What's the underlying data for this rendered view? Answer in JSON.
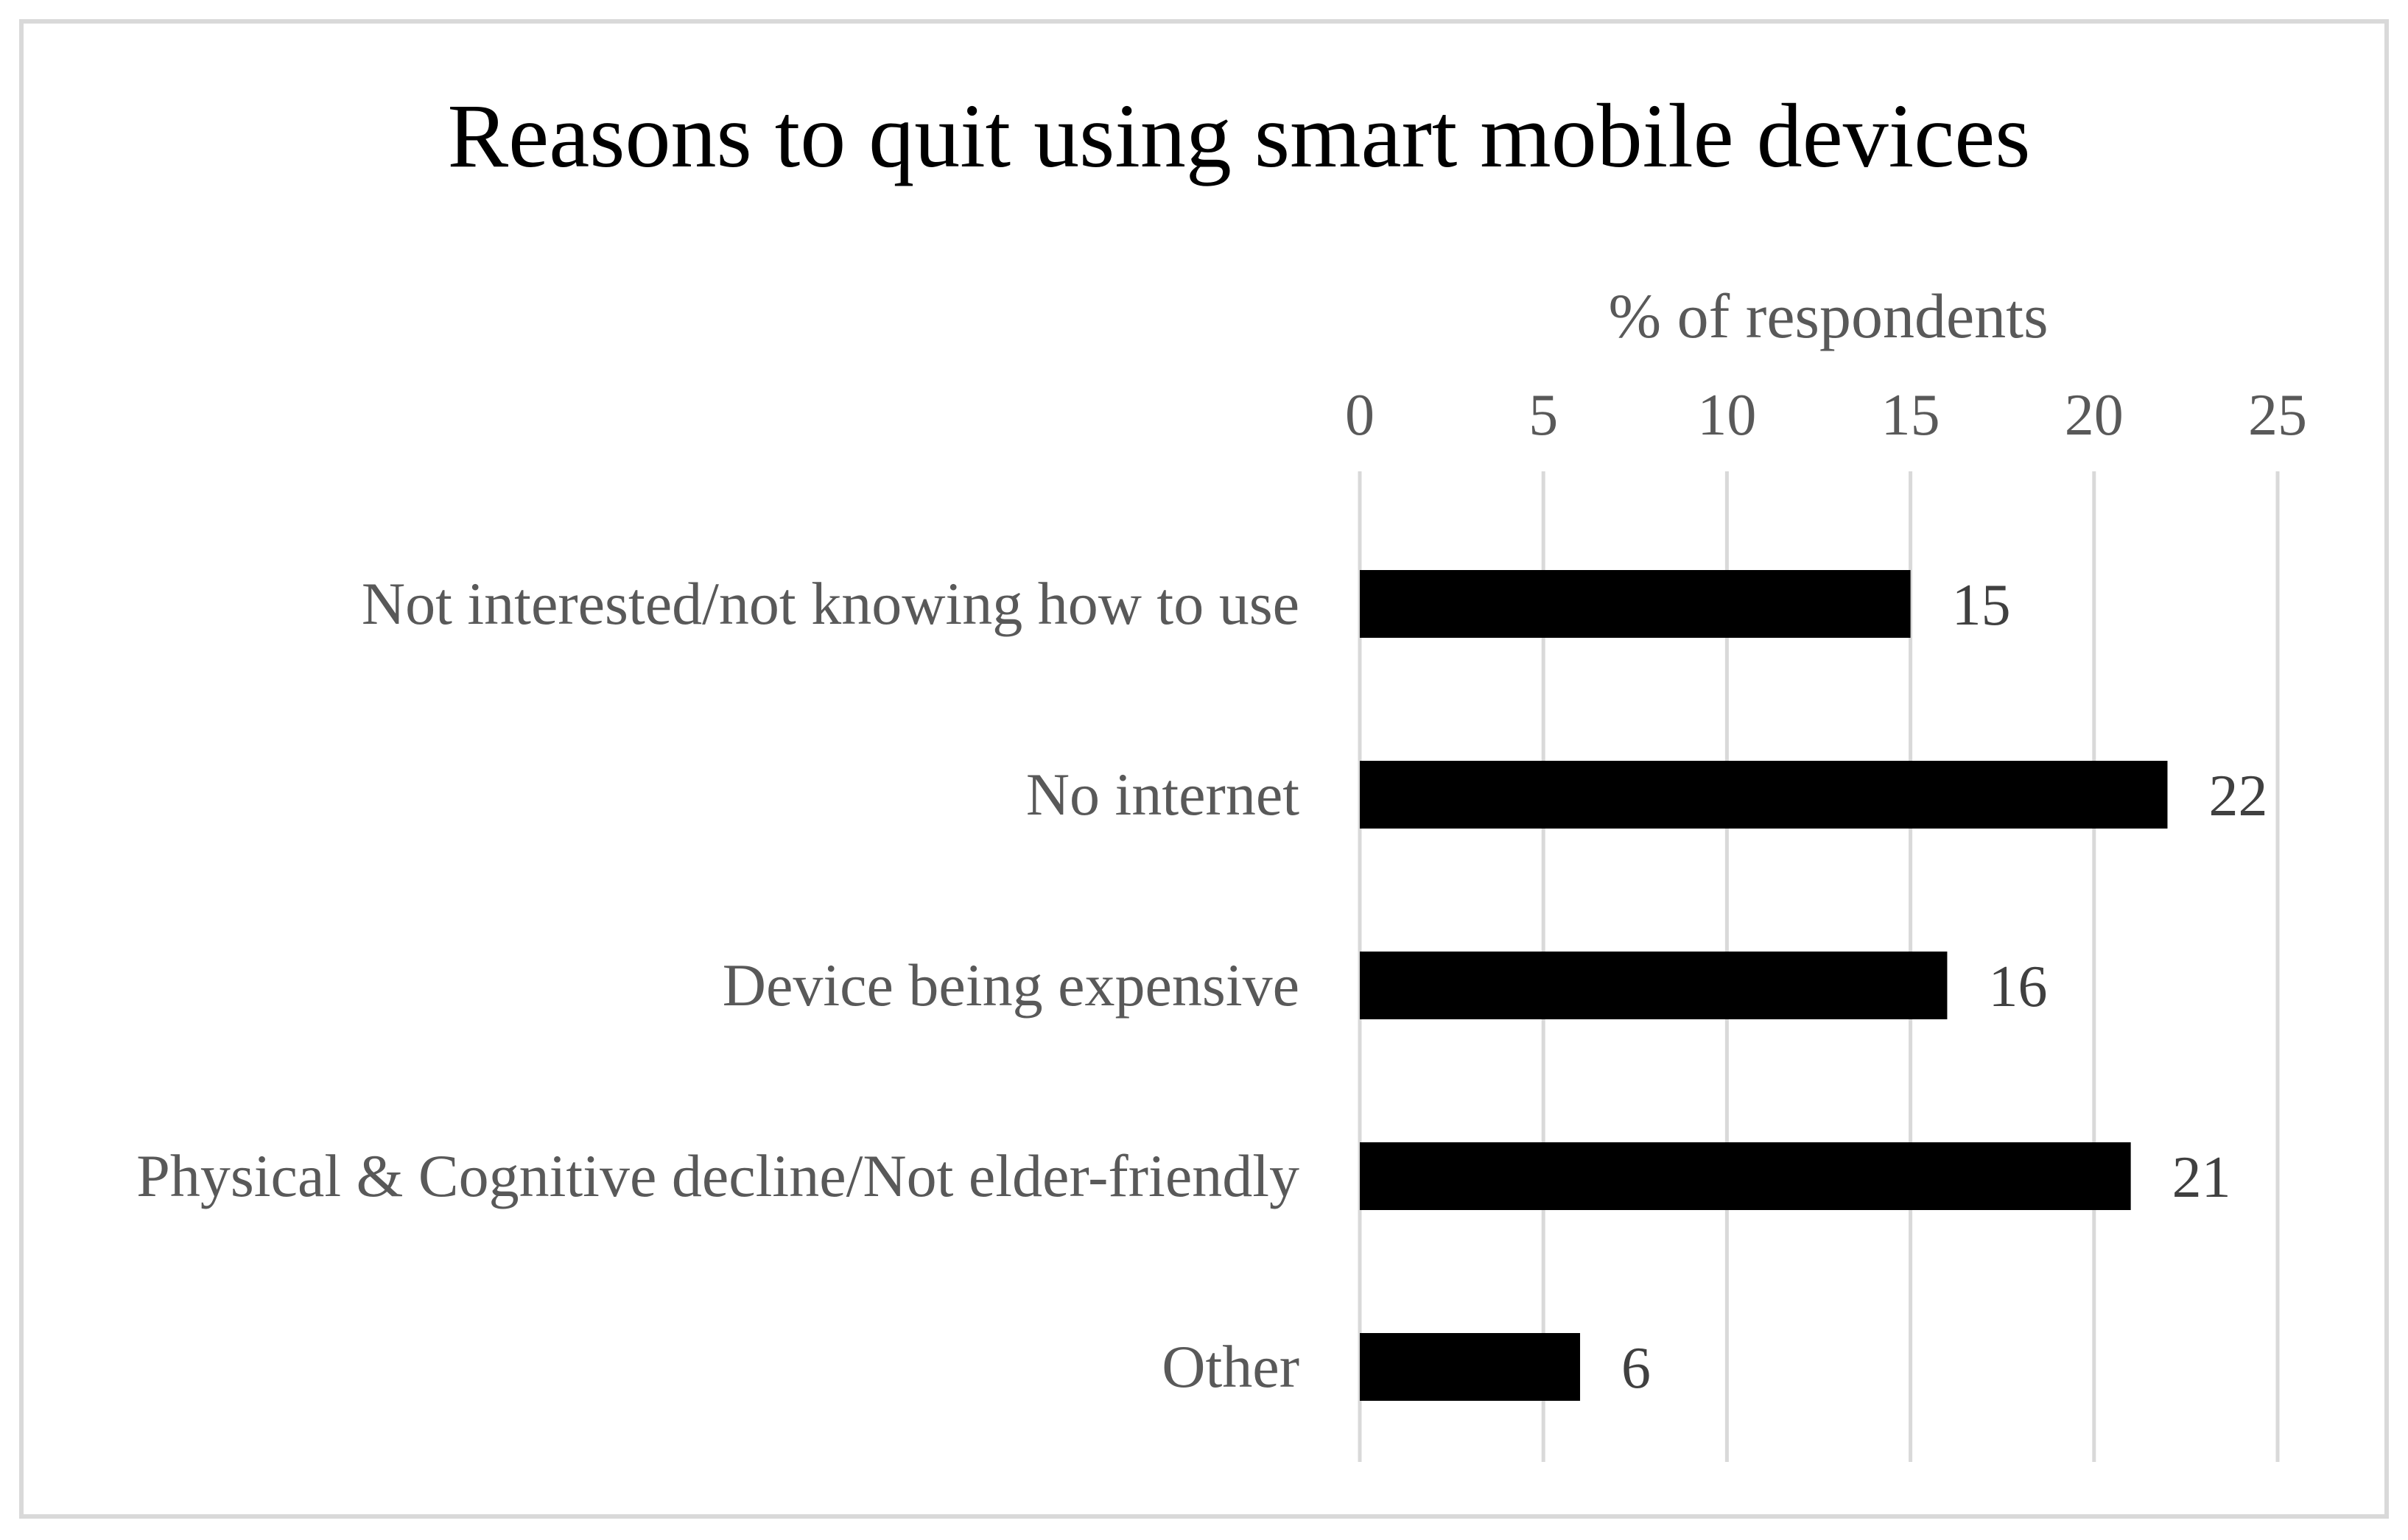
{
  "chart_data": {
    "type": "bar",
    "orientation": "horizontal",
    "title": "Reasons to quit using smart mobile devices",
    "xlabel": "% of respondents",
    "ylabel": "",
    "xlim": [
      0,
      25
    ],
    "x_ticks": [
      0,
      5,
      10,
      15,
      20,
      25
    ],
    "x_axis_position": "top",
    "grid": true,
    "legend": "none",
    "categories": [
      "Not interested/not knowing how to use",
      "No internet",
      "Device being expensive",
      "Physical & Cognitive decline/Not elder-friendly",
      "Other"
    ],
    "values": [
      15,
      22,
      16,
      21,
      6
    ],
    "data_labels": [
      "15",
      "22",
      "16",
      "21",
      "6"
    ],
    "colors": {
      "bar": "#000000",
      "grid": "#d9d9d9",
      "text": "#595959"
    }
  }
}
